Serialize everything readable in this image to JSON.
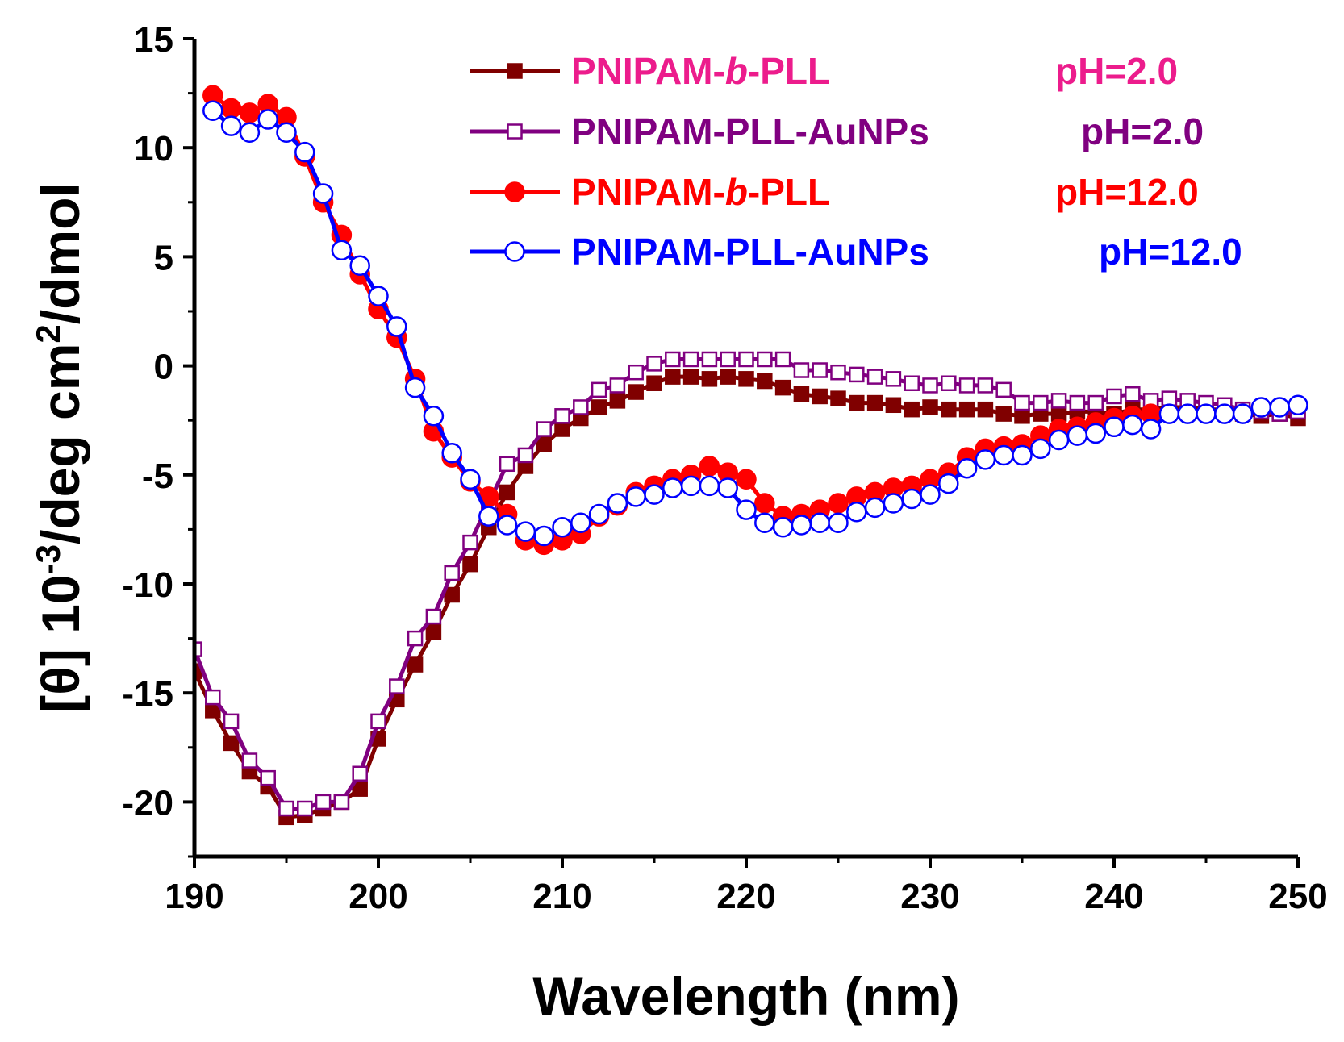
{
  "chart_data": {
    "type": "line",
    "title": "",
    "xlabel": "Wavelength (nm)",
    "ylabel": {
      "prefix": "[θ] 10",
      "exp1": "-3",
      "middle": "/deg cm",
      "exp2": "2",
      "suffix": "/dmol"
    },
    "xlim": [
      190,
      250
    ],
    "ylim": [
      -22.5,
      15
    ],
    "xticks": [
      190,
      200,
      210,
      220,
      230,
      240,
      250
    ],
    "xtick_labels": [
      "190",
      "200",
      "210",
      "220",
      "230",
      "240",
      "250"
    ],
    "yticks": [
      15,
      10,
      5,
      0,
      -5,
      -10,
      -15,
      -20
    ],
    "ytick_labels": [
      "15",
      "10",
      "5",
      "0",
      "-5",
      "-10",
      "-15",
      "-20"
    ],
    "grid": false,
    "legend_position": "top-right",
    "series": [
      {
        "name": "PNIPAM-b-PLL",
        "name_parts": [
          "PNIPAM-",
          "b",
          "-PLL"
        ],
        "ph_label": "pH=2.0",
        "line_color": "#800000",
        "label_color": "#EC1C8C",
        "marker": "square",
        "filled": true,
        "x": [
          190,
          191,
          192,
          193,
          194,
          195,
          196,
          197,
          198,
          199,
          200,
          201,
          202,
          203,
          204,
          205,
          206,
          207,
          208,
          209,
          210,
          211,
          212,
          213,
          214,
          215,
          216,
          217,
          218,
          219,
          220,
          221,
          222,
          223,
          224,
          225,
          226,
          227,
          228,
          229,
          230,
          231,
          232,
          233,
          234,
          235,
          236,
          237,
          238,
          239,
          240,
          241,
          242,
          243,
          244,
          245,
          246,
          247,
          248,
          249,
          250
        ],
        "y": [
          -14,
          -15.8,
          -17.3,
          -18.6,
          -19.3,
          -20.7,
          -20.6,
          -20.3,
          -20,
          -19.4,
          -17.1,
          -15.3,
          -13.7,
          -12.2,
          -10.5,
          -9.1,
          -7.4,
          -5.8,
          -4.6,
          -3.6,
          -2.9,
          -2.4,
          -1.9,
          -1.6,
          -1.2,
          -0.8,
          -0.5,
          -0.5,
          -0.6,
          -0.5,
          -0.6,
          -0.7,
          -1,
          -1.3,
          -1.4,
          -1.5,
          -1.7,
          -1.7,
          -1.8,
          -2,
          -1.9,
          -2,
          -2,
          -2,
          -2.2,
          -2.3,
          -2.2,
          -2.2,
          -2.1,
          -2.1,
          -2.2,
          -2,
          -2,
          -1.9,
          -1.9,
          -2,
          -2,
          -2.2,
          -2.3,
          -2.2,
          -2.4
        ]
      },
      {
        "name": "PNIPAM-PLL-AuNPs",
        "name_parts": [
          "PNIPAM-PLL-AuNPs"
        ],
        "ph_label": "pH=2.0",
        "line_color": "#800080",
        "label_color": "#800080",
        "marker": "square",
        "filled": false,
        "x": [
          190,
          191,
          192,
          193,
          194,
          195,
          196,
          197,
          198,
          199,
          200,
          201,
          202,
          203,
          204,
          205,
          206,
          207,
          208,
          209,
          210,
          211,
          212,
          213,
          214,
          215,
          216,
          217,
          218,
          219,
          220,
          221,
          222,
          223,
          224,
          225,
          226,
          227,
          228,
          229,
          230,
          231,
          232,
          233,
          234,
          235,
          236,
          237,
          238,
          239,
          240,
          241,
          242,
          243,
          244,
          245,
          246,
          247,
          248,
          249,
          250
        ],
        "y": [
          -13,
          -15.2,
          -16.3,
          -18.1,
          -18.9,
          -20.3,
          -20.3,
          -20,
          -20,
          -18.7,
          -16.3,
          -14.7,
          -12.5,
          -11.5,
          -9.5,
          -8.1,
          -6.3,
          -4.5,
          -4.1,
          -2.9,
          -2.3,
          -1.9,
          -1.1,
          -0.9,
          -0.3,
          0.1,
          0.3,
          0.3,
          0.3,
          0.3,
          0.3,
          0.3,
          0.3,
          -0.2,
          -0.2,
          -0.3,
          -0.4,
          -0.5,
          -0.6,
          -0.8,
          -0.9,
          -0.8,
          -0.9,
          -0.9,
          -1.1,
          -1.7,
          -1.7,
          -1.6,
          -1.7,
          -1.7,
          -1.4,
          -1.3,
          -1.6,
          -1.5,
          -1.6,
          -1.7,
          -1.8,
          -2,
          -2.1,
          -2.2,
          -2.1
        ]
      },
      {
        "name": "PNIPAM-b-PLL",
        "name_parts": [
          "PNIPAM-",
          "b",
          "-PLL"
        ],
        "ph_label": "pH=12.0",
        "line_color": "#FF0000",
        "label_color": "#FF0000",
        "marker": "circle",
        "filled": true,
        "x": [
          191,
          192,
          193,
          194,
          195,
          196,
          197,
          198,
          199,
          200,
          201,
          202,
          203,
          204,
          205,
          206,
          207,
          208,
          209,
          210,
          211,
          212,
          213,
          214,
          215,
          216,
          217,
          218,
          219,
          220,
          221,
          222,
          223,
          224,
          225,
          226,
          227,
          228,
          229,
          230,
          231,
          232,
          233,
          234,
          235,
          236,
          237,
          238,
          239,
          240,
          241,
          242
        ],
        "y": [
          12.4,
          11.8,
          11.6,
          12,
          11.4,
          9.6,
          7.5,
          6,
          4.2,
          2.6,
          1.3,
          -0.6,
          -3,
          -4.2,
          -5.3,
          -6,
          -6.8,
          -8,
          -8.2,
          -8,
          -7.7,
          -6.9,
          -6.4,
          -5.8,
          -5.5,
          -5.2,
          -5,
          -4.6,
          -4.9,
          -5.2,
          -6.3,
          -6.9,
          -6.8,
          -6.6,
          -6.3,
          -6,
          -5.8,
          -5.6,
          -5.5,
          -5.2,
          -4.9,
          -4.2,
          -3.8,
          -3.7,
          -3.6,
          -3.2,
          -2.9,
          -2.8,
          -2.6,
          -2.4,
          -2.3,
          -2.2
        ]
      },
      {
        "name": "PNIPAM-PLL-AuNPs",
        "name_parts": [
          "PNIPAM-PLL-AuNPs"
        ],
        "ph_label": "pH=12.0",
        "line_color": "#0000FF",
        "label_color": "#0000FF",
        "marker": "circle",
        "filled": false,
        "x": [
          191,
          192,
          193,
          194,
          195,
          196,
          197,
          198,
          199,
          200,
          201,
          202,
          203,
          204,
          205,
          206,
          207,
          208,
          209,
          210,
          211,
          212,
          213,
          214,
          215,
          216,
          217,
          218,
          219,
          220,
          221,
          222,
          223,
          224,
          225,
          226,
          227,
          228,
          229,
          230,
          231,
          232,
          233,
          234,
          235,
          236,
          237,
          238,
          239,
          240,
          241,
          242,
          243,
          244,
          245,
          246,
          247,
          248,
          249,
          250
        ],
        "y": [
          11.7,
          11,
          10.7,
          11.3,
          10.7,
          9.8,
          7.9,
          5.3,
          4.6,
          3.2,
          1.8,
          -1,
          -2.3,
          -4,
          -5.2,
          -6.9,
          -7.3,
          -7.6,
          -7.8,
          -7.4,
          -7.2,
          -6.8,
          -6.3,
          -6,
          -5.9,
          -5.6,
          -5.5,
          -5.5,
          -5.6,
          -6.6,
          -7.2,
          -7.4,
          -7.3,
          -7.2,
          -7.2,
          -6.7,
          -6.5,
          -6.3,
          -6.1,
          -5.9,
          -5.4,
          -4.7,
          -4.3,
          -4.1,
          -4.1,
          -3.8,
          -3.4,
          -3.2,
          -3.1,
          -2.8,
          -2.7,
          -2.9,
          -2.2,
          -2.2,
          -2.2,
          -2.2,
          -2.2,
          -1.9,
          -1.9,
          -1.8
        ]
      }
    ]
  }
}
